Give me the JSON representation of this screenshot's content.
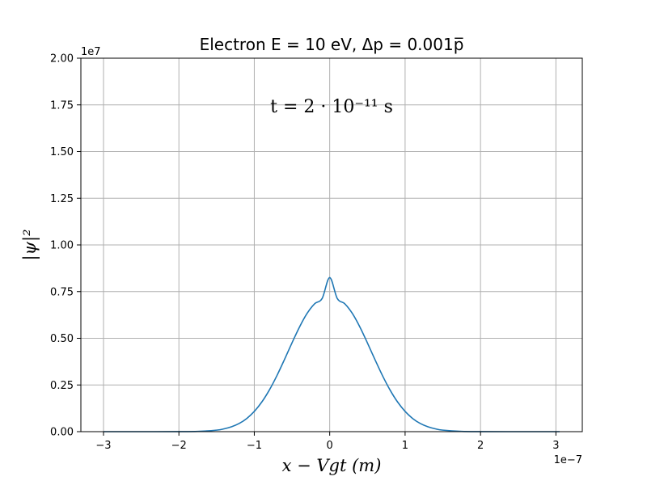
{
  "chart_data": {
    "type": "line",
    "title": "Electron E = 10 eV, Δp = 0.001p̅",
    "xlabel": "x − Vgt (m)",
    "ylabel": "|ψ|²",
    "annotation": "t = 2 · 10⁻¹¹ s",
    "x_offset_label": "1e−7",
    "y_offset_label": "1e7",
    "xlim": [
      -3.3,
      3.35
    ],
    "ylim": [
      0,
      2.0
    ],
    "xticks": [
      -3,
      -2,
      -1,
      0,
      1,
      2,
      3
    ],
    "xtick_labels": [
      "−3",
      "−2",
      "−1",
      "0",
      "1",
      "2",
      "3"
    ],
    "yticks": [
      0,
      0.25,
      0.5,
      0.75,
      1.0,
      1.25,
      1.5,
      1.75,
      2.0
    ],
    "ytick_labels": [
      "0.00",
      "0.25",
      "0.50",
      "0.75",
      "1.00",
      "1.25",
      "1.50",
      "1.75",
      "2.00"
    ],
    "grid": true,
    "series": [
      {
        "color": "#1f77b4",
        "x": [
          -3.0,
          -2.5,
          -2.0,
          -1.75,
          -1.5,
          -1.4,
          -1.3,
          -1.2,
          -1.1,
          -1.0,
          -0.9,
          -0.8,
          -0.7,
          -0.6,
          -0.5,
          -0.4,
          -0.3,
          -0.2,
          -0.1,
          0.0,
          0.1,
          0.2,
          0.3,
          0.4,
          0.5,
          0.6,
          0.7,
          0.8,
          0.9,
          1.0,
          1.1,
          1.2,
          1.3,
          1.4,
          1.5,
          1.75,
          2.0,
          2.5,
          3.05
        ],
        "y": [
          0.0,
          0.0,
          0.0002,
          0.0014,
          0.0081,
          0.015,
          0.0263,
          0.044,
          0.0706,
          0.1084,
          0.159,
          0.2233,
          0.3001,
          0.3861,
          0.4755,
          0.5608,
          0.6332,
          0.6849,
          0.7135,
          0.825,
          0.7135,
          0.6849,
          0.6332,
          0.5608,
          0.4755,
          0.3861,
          0.3001,
          0.2233,
          0.159,
          0.1084,
          0.0706,
          0.044,
          0.0263,
          0.015,
          0.0081,
          0.0014,
          0.0002,
          0.0,
          0.0
        ]
      }
    ]
  }
}
